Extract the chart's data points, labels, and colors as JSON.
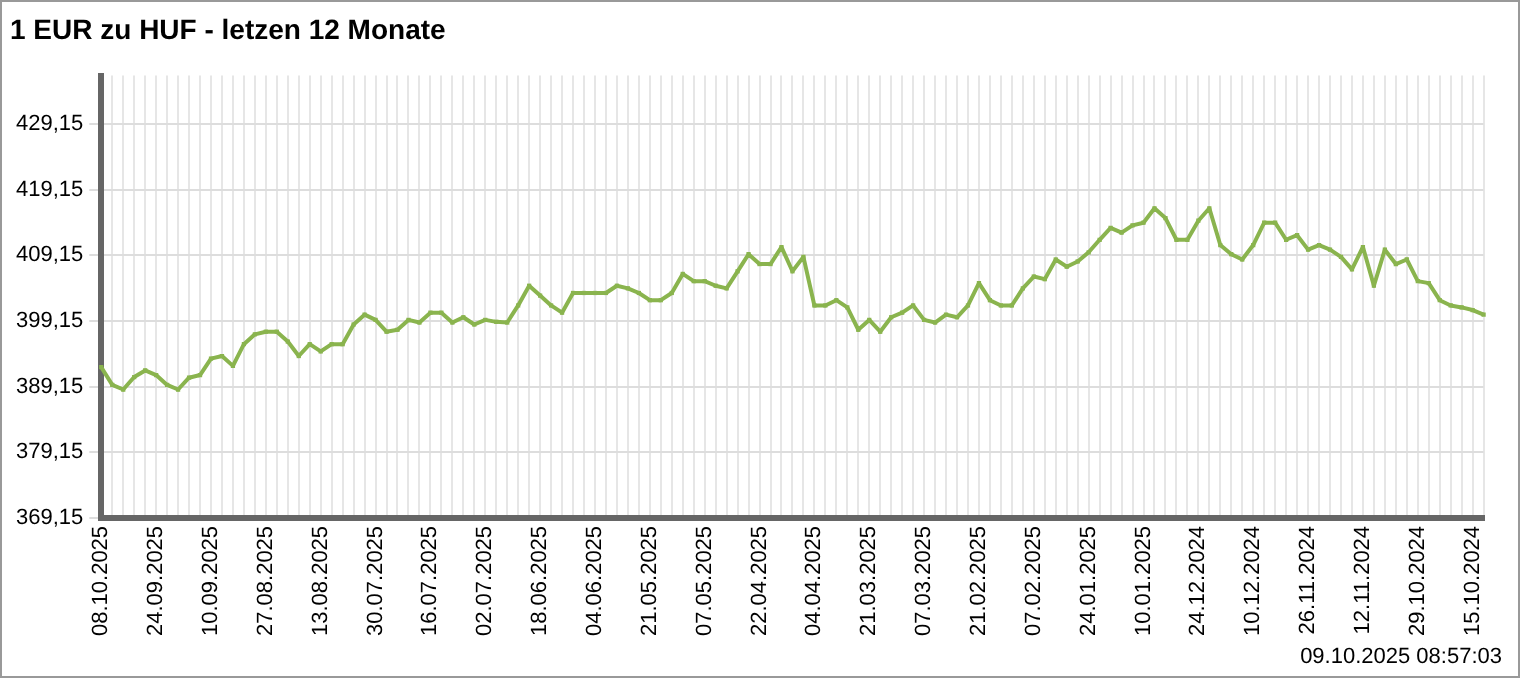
{
  "chart_data": {
    "type": "line",
    "title": "1 EUR zu HUF - letzen 12 Monate",
    "categories": [
      "08.10.2025",
      null,
      null,
      null,
      null,
      "24.09.2025",
      null,
      null,
      null,
      null,
      "10.09.2025",
      null,
      null,
      null,
      null,
      "27.08.2025",
      null,
      null,
      null,
      null,
      "13.08.2025",
      null,
      null,
      null,
      null,
      "30.07.2025",
      null,
      null,
      null,
      null,
      "16.07.2025",
      null,
      null,
      null,
      null,
      "02.07.2025",
      null,
      null,
      null,
      null,
      "18.06.2025",
      null,
      null,
      null,
      null,
      "04.06.2025",
      null,
      null,
      null,
      null,
      "21.05.2025",
      null,
      null,
      null,
      null,
      "07.05.2025",
      null,
      null,
      null,
      null,
      "22.04.2025",
      null,
      null,
      null,
      null,
      "04.04.2025",
      null,
      null,
      null,
      null,
      "21.03.2025",
      null,
      null,
      null,
      null,
      "07.03.2025",
      null,
      null,
      null,
      null,
      "21.02.2025",
      null,
      null,
      null,
      null,
      "07.02.2025",
      null,
      null,
      null,
      null,
      "24.01.2025",
      null,
      null,
      null,
      null,
      "10.01.2025",
      null,
      null,
      null,
      null,
      "24.12.2024",
      null,
      null,
      null,
      null,
      "10.12.2024",
      null,
      null,
      null,
      null,
      "26.11.2024",
      null,
      null,
      null,
      null,
      "12.11.2024",
      null,
      null,
      null,
      null,
      "29.10.2024",
      null,
      null,
      null,
      null,
      "15.10.2024",
      null
    ],
    "series": [
      {
        "color": "#8ab44e",
        "values": [
          392.1,
          389.4,
          388.7,
          390.6,
          391.6,
          390.9,
          389.4,
          388.7,
          390.5,
          390.9,
          393.4,
          393.8,
          392.3,
          395.6,
          397.1,
          397.5,
          397.5,
          396.0,
          393.8,
          395.6,
          394.5,
          395.6,
          395.6,
          398.6,
          400.1,
          399.3,
          397.5,
          397.8,
          399.3,
          398.9,
          400.4,
          400.4,
          398.9,
          399.7,
          398.6,
          399.3,
          399.0,
          398.9,
          401.5,
          404.5,
          403.0,
          401.5,
          400.4,
          403.4,
          403.4,
          403.4,
          403.4,
          404.5,
          404.1,
          403.4,
          402.3,
          402.3,
          403.4,
          406.3,
          405.2,
          405.2,
          404.5,
          404.1,
          406.7,
          409.3,
          407.8,
          407.8,
          410.4,
          406.7,
          408.9,
          401.5,
          401.5,
          402.3,
          401.2,
          397.8,
          399.3,
          397.5,
          399.7,
          400.4,
          401.5,
          399.3,
          398.9,
          400.1,
          399.7,
          401.5,
          404.9,
          402.3,
          401.5,
          401.5,
          404.1,
          405.9,
          405.5,
          408.5,
          407.4,
          408.2,
          409.6,
          411.5,
          413.3,
          412.6,
          413.7,
          414.1,
          416.3,
          414.8,
          411.5,
          411.5,
          414.4,
          416.3,
          410.7,
          409.3,
          408.5,
          410.7,
          414.1,
          414.1,
          411.5,
          412.2,
          410.0,
          410.7,
          410.0,
          408.9,
          407.0,
          410.4,
          404.5,
          410.0,
          407.8,
          408.5,
          405.2,
          404.9,
          402.3,
          401.5,
          401.2,
          400.8,
          400.1
        ]
      }
    ],
    "ylim": [
      369.15,
      436.5
    ],
    "yticks": [
      {
        "value": 369.15,
        "label": "369,15"
      },
      {
        "value": 379.15,
        "label": "379,15"
      },
      {
        "value": 389.15,
        "label": "389,15"
      },
      {
        "value": 399.15,
        "label": "399,15"
      },
      {
        "value": 409.15,
        "label": "409,15"
      },
      {
        "value": 419.15,
        "label": "419,15"
      },
      {
        "value": 429.15,
        "label": "429,15"
      }
    ],
    "grid": true,
    "marker": "square",
    "line_style": "solid",
    "legend": false,
    "annotations": [
      "09.10.2025 08:57:03"
    ]
  }
}
